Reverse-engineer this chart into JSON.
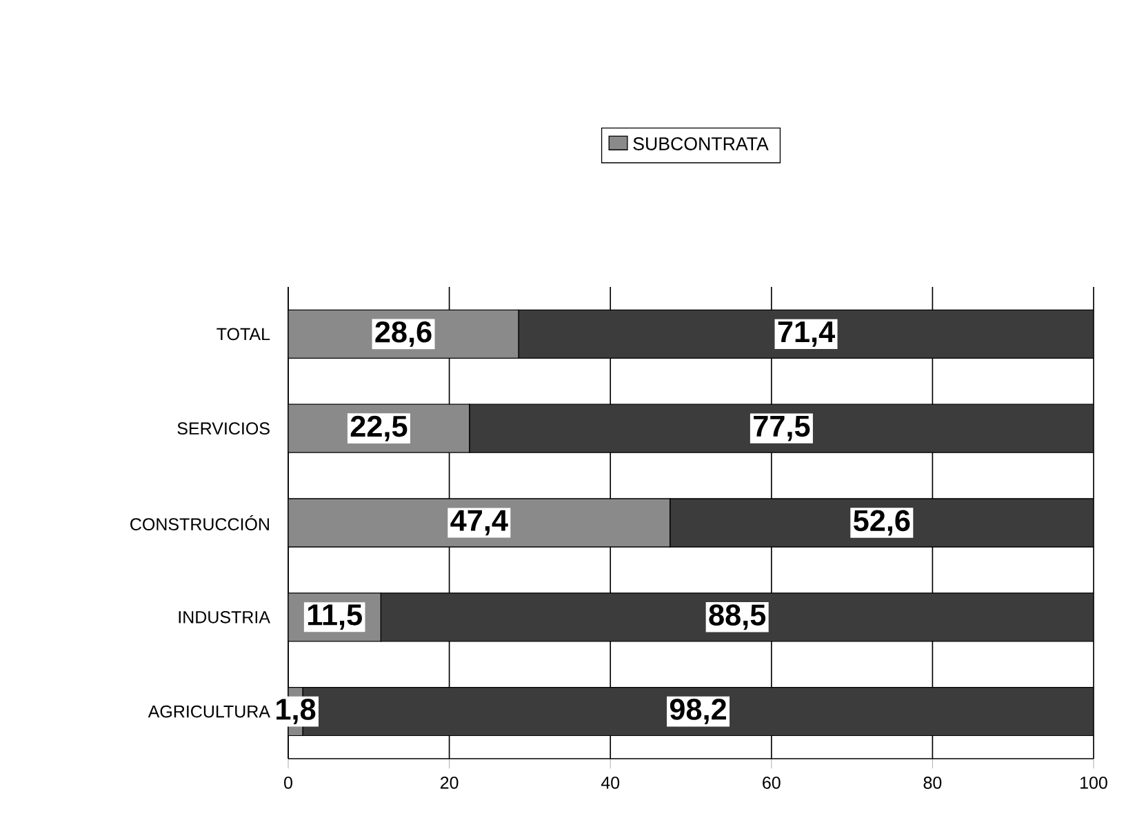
{
  "chart_data": {
    "type": "bar",
    "orientation": "horizontal",
    "stacked": true,
    "categories": [
      "TOTAL",
      "SERVICIOS",
      "CONSTRUCCIÓN",
      "INDUSTRIA",
      "AGRICULTURA"
    ],
    "series": [
      {
        "name": "SUBCONTRATA",
        "color": "#8a8a8a",
        "values": [
          28.6,
          22.5,
          47.4,
          11.5,
          1.8
        ],
        "value_labels": [
          "28,6",
          "22,5",
          "47,4",
          "11,5",
          "1,8"
        ]
      },
      {
        "color": "#3c3c3c",
        "values": [
          71.4,
          77.5,
          52.6,
          88.5,
          98.2
        ],
        "value_labels": [
          "71,4",
          "77,5",
          "52,6",
          "88,5",
          "98,2"
        ]
      }
    ],
    "xlim": [
      0,
      100
    ],
    "xticks": [
      0,
      20,
      40,
      60,
      80,
      100
    ],
    "grid": "x",
    "legend": "top"
  }
}
